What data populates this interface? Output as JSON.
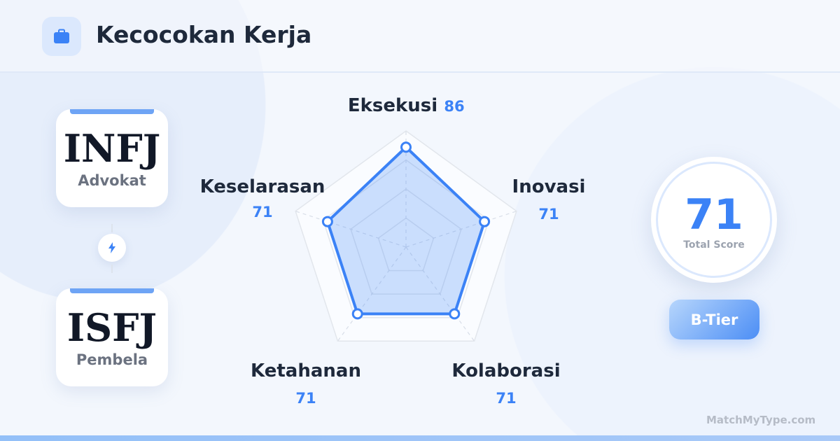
{
  "header": {
    "title": "Kecocokan Kerja",
    "icon": "briefcase-icon"
  },
  "types": [
    {
      "code": "INFJ",
      "name": "Advokat"
    },
    {
      "code": "ISFJ",
      "name": "Pembela"
    }
  ],
  "connector_icon": "lightning-icon",
  "chart_data": {
    "type": "radar",
    "categories": [
      "Eksekusi",
      "Inovasi",
      "Kolaborasi",
      "Ketahanan",
      "Keselarasan"
    ],
    "values": [
      86,
      71,
      71,
      71,
      71
    ],
    "value_labels": [
      "86",
      "71",
      "71",
      "71",
      "71"
    ],
    "range": [
      0,
      100
    ],
    "grid_levels": [
      25,
      50,
      75,
      100
    ],
    "color": "#3b82f6"
  },
  "score": {
    "value": "71",
    "label": "Total Score"
  },
  "tier": "B-Tier",
  "brand": "MatchMyType.com",
  "colors": {
    "accent": "#3b82f6",
    "text": "#1e293b"
  }
}
